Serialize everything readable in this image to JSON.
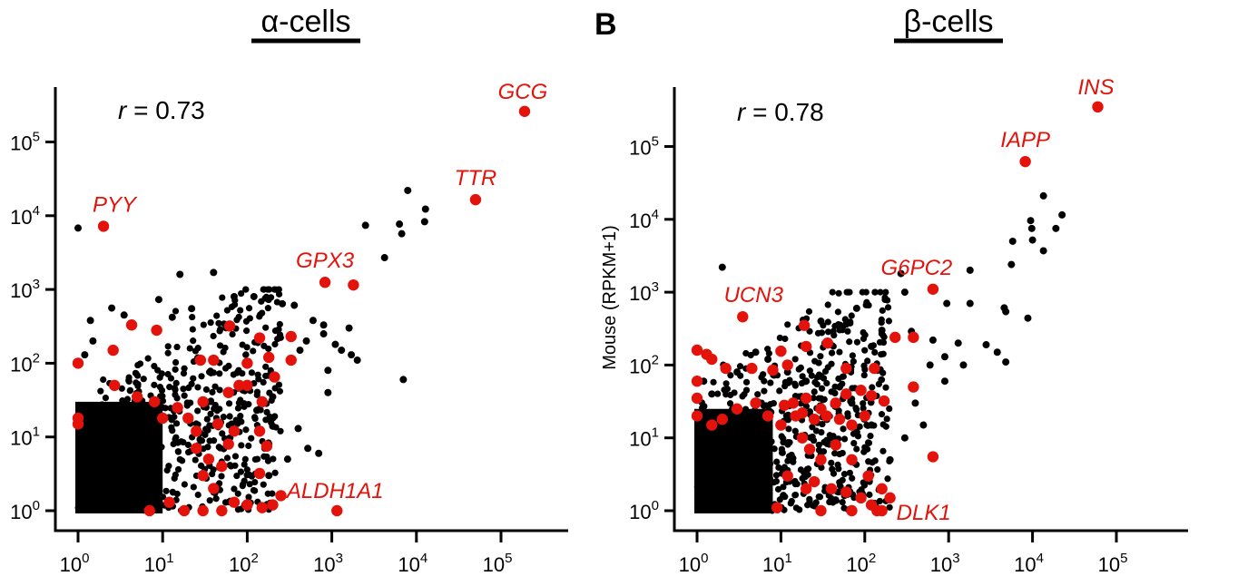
{
  "chart_data": [
    {
      "type": "scatter",
      "panel_letter": "",
      "title": "α-cells",
      "xlabel": "",
      "ylabel": "",
      "xscale": "log10",
      "yscale": "log10",
      "xlim": [
        0.7,
        1000000
      ],
      "ylim": [
        0.65,
        1000000
      ],
      "x_ticks": [
        1,
        10,
        100,
        1000,
        10000,
        100000
      ],
      "x_tick_labels": [
        {
          "base": "10",
          "exp": "0"
        },
        {
          "base": "10",
          "exp": "1"
        },
        {
          "base": "10",
          "exp": "2"
        },
        {
          "base": "10",
          "exp": "3"
        },
        {
          "base": "10",
          "exp": "4"
        },
        {
          "base": "10",
          "exp": "5"
        }
      ],
      "y_ticks": [
        1,
        10,
        100,
        1000,
        10000,
        100000
      ],
      "y_tick_labels": [
        {
          "base": "10",
          "exp": "0"
        },
        {
          "base": "10",
          "exp": "1"
        },
        {
          "base": "10",
          "exp": "2"
        },
        {
          "base": "10",
          "exp": "3"
        },
        {
          "base": "10",
          "exp": "4"
        },
        {
          "base": "10",
          "exp": "5"
        }
      ],
      "correlation": {
        "prefix": "r",
        "text": " = 0.73"
      },
      "grid": false,
      "legend": "none",
      "colors": {
        "background_points": "#000000",
        "highlight_points": "#e3120b"
      },
      "dense_cloud": {
        "x_min": 1,
        "x_max": 10,
        "y_min": 1,
        "y_max": 30
      },
      "series": [
        {
          "color": "#000000",
          "points": [
            [
              1,
              6800
            ],
            [
              7900,
              22000
            ],
            [
              12800,
              12300
            ],
            [
              12500,
              8300
            ],
            [
              6300,
              7700
            ],
            [
              6700,
              5700
            ],
            [
              2500,
              7400
            ],
            [
              4200,
              2700
            ],
            [
              7000,
              60
            ],
            [
              16,
              1600
            ],
            [
              40,
              1700
            ],
            [
              9,
              730
            ],
            [
              2.5,
              560
            ],
            [
              1.4,
              380
            ],
            [
              3.5,
              450
            ],
            [
              13,
              420
            ],
            [
              22,
              550
            ],
            [
              70,
              800
            ],
            [
              120,
              800
            ],
            [
              260,
              640
            ],
            [
              360,
              610
            ],
            [
              600,
              380
            ],
            [
              800,
              330
            ],
            [
              1600,
              300
            ],
            [
              800,
              250
            ],
            [
              500,
              200
            ],
            [
              1700,
              130
            ],
            [
              1300,
              150
            ],
            [
              2000,
              110
            ],
            [
              1100,
              180
            ],
            [
              420,
              150
            ],
            [
              900,
              80
            ],
            [
              900,
              40
            ],
            [
              200,
              35
            ],
            [
              130,
              23
            ],
            [
              200,
              14
            ],
            [
              400,
              13
            ],
            [
              520,
              7
            ],
            [
              700,
              6
            ],
            [
              300,
              5
            ],
            [
              180,
              8
            ],
            [
              180,
              3
            ],
            [
              1.5,
              200
            ],
            [
              1.2,
              130
            ]
          ]
        },
        {
          "color": "#e3120b",
          "points": [
            [
              190000,
              260000
            ],
            [
              50000,
              16500
            ],
            [
              2,
              7200
            ],
            [
              830,
              1250
            ],
            [
              1800,
              1150
            ],
            [
              4.3,
              330
            ],
            [
              8.5,
              280
            ],
            [
              62,
              320
            ],
            [
              140,
              220
            ],
            [
              330,
              230
            ],
            [
              2.6,
              150
            ],
            [
              330,
              110
            ],
            [
              1,
              100
            ],
            [
              28,
              110
            ],
            [
              40,
              110
            ],
            [
              100,
              100
            ],
            [
              180,
              120
            ],
            [
              2.7,
              50
            ],
            [
              100,
              50
            ],
            [
              210,
              65
            ],
            [
              150,
              30
            ],
            [
              1,
              18
            ],
            [
              1,
              15
            ],
            [
              10,
              18
            ],
            [
              5,
              35
            ],
            [
              8,
              30
            ],
            [
              15,
              25
            ],
            [
              30,
              30
            ],
            [
              60,
              40
            ],
            [
              80,
              50
            ],
            [
              20,
              18
            ],
            [
              25,
              12
            ],
            [
              45,
              15
            ],
            [
              70,
              12
            ],
            [
              140,
              12
            ],
            [
              60,
              8
            ],
            [
              170,
              7.5
            ],
            [
              25,
              7
            ],
            [
              35,
              5
            ],
            [
              50,
              4
            ],
            [
              140,
              3.2
            ],
            [
              30,
              3
            ],
            [
              40,
              2
            ],
            [
              12,
              1.3
            ],
            [
              70,
              1.3
            ],
            [
              100,
              1.2
            ],
            [
              150,
              1.1
            ],
            [
              200,
              1.2
            ],
            [
              250,
              1.6
            ],
            [
              7,
              1
            ],
            [
              18,
              1
            ],
            [
              30,
              1
            ],
            [
              50,
              1
            ],
            [
              1150,
              1
            ]
          ]
        }
      ],
      "gene_labels": [
        {
          "text": "GCG",
          "x": 190000,
          "y": 260000,
          "dx": -2,
          "dy": -14,
          "anchor": "middle"
        },
        {
          "text": "TTR",
          "x": 50000,
          "y": 16500,
          "dx": 0,
          "dy": -16,
          "anchor": "middle"
        },
        {
          "text": "PYY",
          "x": 2,
          "y": 7200,
          "dx": 12,
          "dy": -16,
          "anchor": "middle"
        },
        {
          "text": "GPX3",
          "x": 830,
          "y": 1250,
          "dx": 0,
          "dy": -16,
          "anchor": "middle"
        },
        {
          "text": "ALDH1A1",
          "x": 1150,
          "y": 1,
          "dx": -2,
          "dy": -14,
          "anchor": "middle"
        }
      ]
    },
    {
      "type": "scatter",
      "panel_letter": "B",
      "title": "β-cells",
      "xlabel": "",
      "ylabel": "Mouse (RPKM+1)",
      "xscale": "log10",
      "yscale": "log10",
      "xlim": [
        0.7,
        1000000
      ],
      "ylim": [
        0.65,
        1000000
      ],
      "x_ticks": [
        1,
        10,
        100,
        1000,
        10000,
        100000
      ],
      "x_tick_labels": [
        {
          "base": "10",
          "exp": "0"
        },
        {
          "base": "10",
          "exp": "1"
        },
        {
          "base": "10",
          "exp": "2"
        },
        {
          "base": "10",
          "exp": "3"
        },
        {
          "base": "10",
          "exp": "4"
        },
        {
          "base": "10",
          "exp": "5"
        }
      ],
      "y_ticks": [
        1,
        10,
        100,
        1000,
        10000,
        100000
      ],
      "y_tick_labels": [
        {
          "base": "10",
          "exp": "0"
        },
        {
          "base": "10",
          "exp": "1"
        },
        {
          "base": "10",
          "exp": "2"
        },
        {
          "base": "10",
          "exp": "3"
        },
        {
          "base": "10",
          "exp": "4"
        },
        {
          "base": "10",
          "exp": "5"
        }
      ],
      "correlation": {
        "prefix": "r",
        "text": " = 0.78"
      },
      "grid": false,
      "legend": "none",
      "colors": {
        "background_points": "#000000",
        "highlight_points": "#e3120b"
      },
      "dense_cloud": {
        "x_min": 1,
        "x_max": 8,
        "y_min": 1,
        "y_max": 25
      },
      "series": [
        {
          "color": "#000000",
          "points": [
            [
              13500,
              21000
            ],
            [
              9500,
              9600
            ],
            [
              9800,
              7500
            ],
            [
              22500,
              11500
            ],
            [
              10000,
              5200
            ],
            [
              19000,
              7500
            ],
            [
              5800,
              5000
            ],
            [
              5600,
              2400
            ],
            [
              1800,
              2000
            ],
            [
              4600,
              610
            ],
            [
              4800,
              540
            ],
            [
              8800,
              440
            ],
            [
              3800,
              150
            ],
            [
              13500,
              3700
            ],
            [
              2,
              2200
            ],
            [
              270,
              1800
            ],
            [
              300,
              1000
            ],
            [
              950,
              700
            ],
            [
              1800,
              700
            ],
            [
              360,
              290
            ],
            [
              650,
              220
            ],
            [
              1300,
              200
            ],
            [
              2800,
              190
            ],
            [
              4800,
              110
            ],
            [
              1500,
              100
            ],
            [
              80,
              600
            ],
            [
              30,
              400
            ],
            [
              160,
              300
            ],
            [
              900,
              130
            ],
            [
              120,
              180
            ],
            [
              600,
              100
            ],
            [
              900,
              60
            ],
            [
              400,
              30
            ],
            [
              500,
              15
            ],
            [
              300,
              10
            ],
            [
              200,
              5
            ],
            [
              150,
              2
            ],
            [
              1.5,
              40
            ],
            [
              2,
              20
            ],
            [
              1.2,
              60
            ],
            [
              3,
              80
            ],
            [
              5,
              150
            ],
            [
              7,
              120
            ],
            [
              12,
              80
            ],
            [
              20,
              60
            ],
            [
              30,
              70
            ],
            [
              50,
              50
            ],
            [
              70,
              30
            ],
            [
              100,
              20
            ],
            [
              120,
              15
            ],
            [
              80,
              12
            ]
          ]
        },
        {
          "color": "#e3120b",
          "points": [
            [
              60000,
              350000
            ],
            [
              8200,
              62000
            ],
            [
              3.5,
              460
            ],
            [
              650,
              1100
            ],
            [
              230,
              240
            ],
            [
              380,
              240
            ],
            [
              19,
              350
            ],
            [
              1,
              160
            ],
            [
              1.3,
              140
            ],
            [
              1.5,
              120
            ],
            [
              10,
              155
            ],
            [
              20,
              180
            ],
            [
              36,
              200
            ],
            [
              2.2,
              90
            ],
            [
              4.5,
              90
            ],
            [
              8,
              85
            ],
            [
              12,
              100
            ],
            [
              60,
              90
            ],
            [
              130,
              90
            ],
            [
              380,
              50
            ],
            [
              1,
              60
            ],
            [
              1,
              35
            ],
            [
              1,
              20
            ],
            [
              1.5,
              15
            ],
            [
              2,
              18
            ],
            [
              3,
              25
            ],
            [
              5,
              30
            ],
            [
              7,
              20
            ],
            [
              10,
              15
            ],
            [
              15,
              20
            ],
            [
              20,
              35
            ],
            [
              30,
              25
            ],
            [
              45,
              30
            ],
            [
              60,
              40
            ],
            [
              90,
              45
            ],
            [
              120,
              38
            ],
            [
              170,
              32
            ],
            [
              11,
              28
            ],
            [
              14,
              30
            ],
            [
              18,
              22
            ],
            [
              25,
              18
            ],
            [
              35,
              20
            ],
            [
              50,
              18
            ],
            [
              70,
              15
            ],
            [
              100,
              20
            ],
            [
              18,
              10
            ],
            [
              22,
              7
            ],
            [
              30,
              5
            ],
            [
              45,
              8
            ],
            [
              70,
              5
            ],
            [
              110,
              3
            ],
            [
              160,
              2
            ],
            [
              200,
              1.5
            ],
            [
              12,
              3
            ],
            [
              20,
              2
            ],
            [
              25,
              2.5
            ],
            [
              40,
              2
            ],
            [
              60,
              1.8
            ],
            [
              90,
              1.5
            ],
            [
              120,
              1.2
            ],
            [
              160,
              1
            ],
            [
              650,
              5.5
            ],
            [
              9,
              1.1
            ],
            [
              30,
              1
            ],
            [
              70,
              1
            ],
            [
              140,
              1
            ]
          ]
        }
      ],
      "gene_labels": [
        {
          "text": "INS",
          "x": 60000,
          "y": 350000,
          "dx": -2,
          "dy": -14,
          "anchor": "middle"
        },
        {
          "text": "IAPP",
          "x": 8200,
          "y": 62000,
          "dx": 0,
          "dy": -16,
          "anchor": "middle"
        },
        {
          "text": "UCN3",
          "x": 3.5,
          "y": 460,
          "dx": 12,
          "dy": -16,
          "anchor": "middle"
        },
        {
          "text": "G6PC2",
          "x": 650,
          "y": 1100,
          "dx": -18,
          "dy": -16,
          "anchor": "middle"
        },
        {
          "text": "DLK1",
          "x": 160,
          "y": 1,
          "dx": 16,
          "dy": 10,
          "anchor": "start"
        }
      ]
    }
  ]
}
